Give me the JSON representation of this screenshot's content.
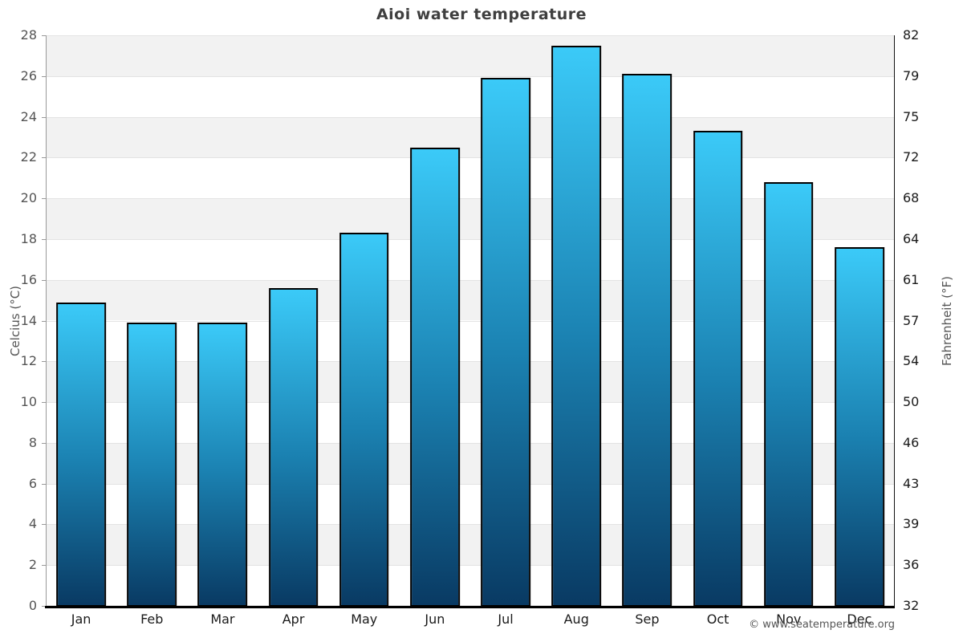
{
  "page": {
    "watermark": "© www.seatemperature.org"
  },
  "chart_data": {
    "type": "bar",
    "title": "Aioi water temperature",
    "categories": [
      "Jan",
      "Feb",
      "Mar",
      "Apr",
      "May",
      "Jun",
      "Jul",
      "Aug",
      "Sep",
      "Oct",
      "Nov",
      "Dec"
    ],
    "values": [
      14.9,
      13.9,
      13.9,
      15.6,
      18.3,
      22.5,
      25.9,
      27.5,
      26.1,
      23.3,
      20.8,
      17.6
    ],
    "unit": "°C",
    "xlabel": "",
    "ylabel_left": "Celcius (°C)",
    "ylabel_right": "Fahrenheit (°F)",
    "ylim": [
      0,
      28
    ],
    "ytick_step": 2,
    "yticks_celsius": [
      0,
      2,
      4,
      6,
      8,
      10,
      12,
      14,
      16,
      18,
      20,
      22,
      24,
      26,
      28
    ],
    "yticks_fahrenheit": [
      32,
      36,
      39,
      43,
      46,
      50,
      54,
      57,
      61,
      64,
      68,
      72,
      75,
      79,
      82
    ],
    "grid": "on",
    "legend": "none",
    "band_pattern": "alternating, gray band at top (26-28)",
    "colors": {
      "bar_top": "#3bcaf8",
      "bar_mid": "#1b82b2",
      "bar_bottom": "#093a63",
      "bar_border": "#000000",
      "band": "#f2f2f2",
      "gridline": "#e3e3e3",
      "axis_left": "#999999",
      "axis_right": "#111111",
      "axis_bottom": "#000000",
      "title_text": "#3f3f3f",
      "tick_text_left": "#555555",
      "tick_text_right": "#1a1a1a"
    }
  }
}
